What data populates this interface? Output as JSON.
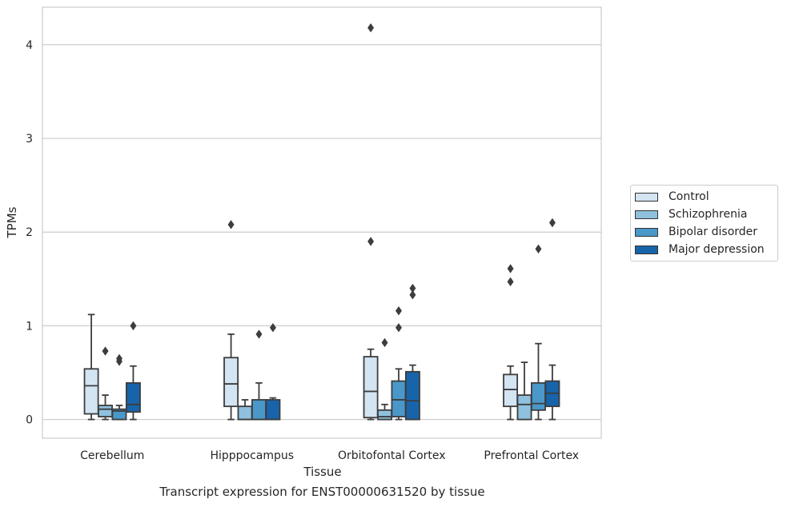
{
  "chart_data": {
    "type": "box",
    "xlabel": "Tissue",
    "ylabel": "TPMs",
    "ylim": [
      -0.2,
      4.4
    ],
    "yticks": [
      0,
      1,
      2,
      3,
      4
    ],
    "grid": "horizontal",
    "categories": [
      "Cerebellum",
      "Hipppocampus",
      "Orbitofontal Cortex",
      "Prefrontal Cortex"
    ],
    "legend_position": "right",
    "series": [
      {
        "name": "Control",
        "color": "#d3e4f3",
        "boxes": [
          {
            "whisker_low": 0.0,
            "q1": 0.06,
            "median": 0.36,
            "q3": 0.54,
            "whisker_high": 1.12,
            "outliers": []
          },
          {
            "whisker_low": 0.0,
            "q1": 0.14,
            "median": 0.38,
            "q3": 0.66,
            "whisker_high": 0.91,
            "outliers": [
              2.08
            ]
          },
          {
            "whisker_low": 0.0,
            "q1": 0.02,
            "median": 0.3,
            "q3": 0.67,
            "whisker_high": 0.75,
            "outliers": [
              1.9,
              4.18
            ]
          },
          {
            "whisker_low": 0.0,
            "q1": 0.14,
            "median": 0.32,
            "q3": 0.48,
            "whisker_high": 0.57,
            "outliers": [
              1.47,
              1.61
            ]
          }
        ]
      },
      {
        "name": "Schizophrenia",
        "color": "#8fc1de",
        "boxes": [
          {
            "whisker_low": 0.0,
            "q1": 0.03,
            "median": 0.11,
            "q3": 0.15,
            "whisker_high": 0.26,
            "outliers": [
              0.73
            ]
          },
          {
            "whisker_low": 0.0,
            "q1": 0.0,
            "median": 0.0,
            "q3": 0.14,
            "whisker_high": 0.21,
            "outliers": []
          },
          {
            "whisker_low": 0.0,
            "q1": 0.0,
            "median": 0.03,
            "q3": 0.1,
            "whisker_high": 0.16,
            "outliers": [
              0.82
            ]
          },
          {
            "whisker_low": 0.0,
            "q1": 0.0,
            "median": 0.16,
            "q3": 0.26,
            "whisker_high": 0.61,
            "outliers": []
          }
        ]
      },
      {
        "name": "Bipolar disorder",
        "color": "#4a98c9",
        "boxes": [
          {
            "whisker_low": 0.0,
            "q1": 0.0,
            "median": 0.09,
            "q3": 0.11,
            "whisker_high": 0.15,
            "outliers": [
              0.62,
              0.65
            ]
          },
          {
            "whisker_low": 0.0,
            "q1": 0.0,
            "median": 0.0,
            "q3": 0.21,
            "whisker_high": 0.39,
            "outliers": [
              0.91
            ]
          },
          {
            "whisker_low": 0.0,
            "q1": 0.03,
            "median": 0.21,
            "q3": 0.41,
            "whisker_high": 0.54,
            "outliers": [
              0.98,
              1.16
            ]
          },
          {
            "whisker_low": 0.0,
            "q1": 0.1,
            "median": 0.17,
            "q3": 0.39,
            "whisker_high": 0.81,
            "outliers": [
              1.82
            ]
          }
        ]
      },
      {
        "name": "Major depression",
        "color": "#1764ab",
        "boxes": [
          {
            "whisker_low": 0.0,
            "q1": 0.08,
            "median": 0.16,
            "q3": 0.39,
            "whisker_high": 0.57,
            "outliers": [
              1.0
            ]
          },
          {
            "whisker_low": 0.0,
            "q1": 0.0,
            "median": 0.0,
            "q3": 0.21,
            "whisker_high": 0.23,
            "outliers": [
              0.98
            ]
          },
          {
            "whisker_low": 0.0,
            "q1": 0.0,
            "median": 0.2,
            "q3": 0.51,
            "whisker_high": 0.58,
            "outliers": [
              1.33,
              1.4
            ]
          },
          {
            "whisker_low": 0.0,
            "q1": 0.14,
            "median": 0.28,
            "q3": 0.41,
            "whisker_high": 0.58,
            "outliers": [
              2.1
            ]
          }
        ]
      }
    ]
  },
  "caption": "Transcript expression for ENST00000631520 by tissue"
}
